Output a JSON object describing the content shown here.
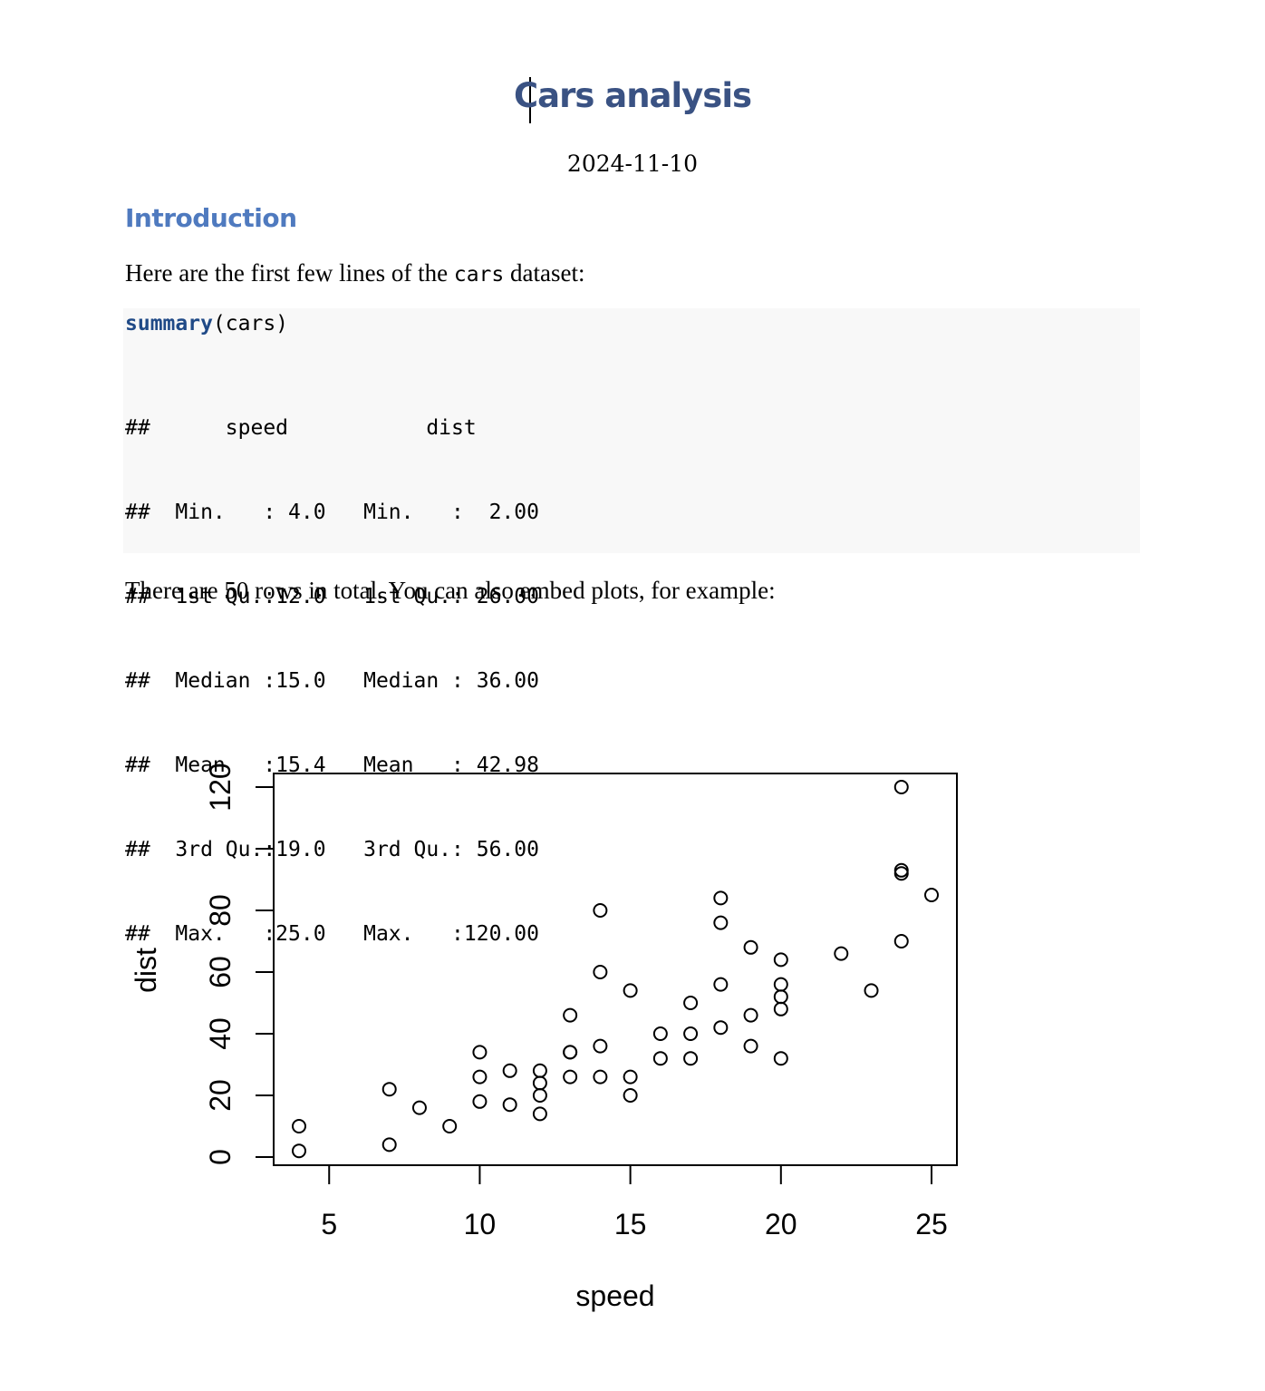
{
  "document": {
    "title": "Cars analysis",
    "date": "2024-11-10",
    "section_heading": "Introduction",
    "intro_prefix": "Here are the first few lines of the ",
    "intro_code": "cars",
    "intro_suffix": " dataset:",
    "code_call_fn": "summary",
    "code_call_args": "(cars)",
    "output_lines": [
      "##      speed           dist       ",
      "##  Min.   : 4.0   Min.   :  2.00  ",
      "##  1st Qu.:12.0   1st Qu.: 26.00  ",
      "##  Median :15.0   Median : 36.00  ",
      "##  Mean   :15.4   Mean   : 42.98  ",
      "##  3rd Qu.:19.0   3rd Qu.: 56.00  ",
      "##  Max.   :25.0   Max.   :120.00  "
    ],
    "closing_text": "There are 50 rows in total. You can also embed plots, for example:"
  },
  "chart_data": {
    "type": "scatter",
    "xlabel": "speed",
    "ylabel": "dist",
    "xlim": [
      4,
      25
    ],
    "ylim": [
      2,
      120
    ],
    "x_ticks": [
      5,
      10,
      15,
      20,
      25
    ],
    "y_ticks": [
      0,
      20,
      40,
      60,
      80,
      100,
      120
    ],
    "y_tick_labels": [
      "0",
      "20",
      "40",
      "60",
      "80",
      "",
      "120"
    ],
    "grid": false,
    "points": [
      [
        4,
        2
      ],
      [
        4,
        10
      ],
      [
        7,
        4
      ],
      [
        7,
        22
      ],
      [
        8,
        16
      ],
      [
        9,
        10
      ],
      [
        10,
        18
      ],
      [
        10,
        26
      ],
      [
        10,
        34
      ],
      [
        11,
        17
      ],
      [
        11,
        28
      ],
      [
        12,
        14
      ],
      [
        12,
        20
      ],
      [
        12,
        24
      ],
      [
        12,
        28
      ],
      [
        13,
        26
      ],
      [
        13,
        34
      ],
      [
        13,
        34
      ],
      [
        13,
        46
      ],
      [
        14,
        26
      ],
      [
        14,
        36
      ],
      [
        14,
        60
      ],
      [
        14,
        80
      ],
      [
        15,
        20
      ],
      [
        15,
        26
      ],
      [
        15,
        54
      ],
      [
        16,
        32
      ],
      [
        16,
        40
      ],
      [
        17,
        32
      ],
      [
        17,
        40
      ],
      [
        17,
        50
      ],
      [
        18,
        42
      ],
      [
        18,
        56
      ],
      [
        18,
        76
      ],
      [
        18,
        84
      ],
      [
        19,
        36
      ],
      [
        19,
        46
      ],
      [
        19,
        68
      ],
      [
        20,
        32
      ],
      [
        20,
        48
      ],
      [
        20,
        52
      ],
      [
        20,
        56
      ],
      [
        20,
        64
      ],
      [
        22,
        66
      ],
      [
        23,
        54
      ],
      [
        24,
        70
      ],
      [
        24,
        92
      ],
      [
        24,
        93
      ],
      [
        24,
        120
      ],
      [
        25,
        85
      ]
    ]
  }
}
